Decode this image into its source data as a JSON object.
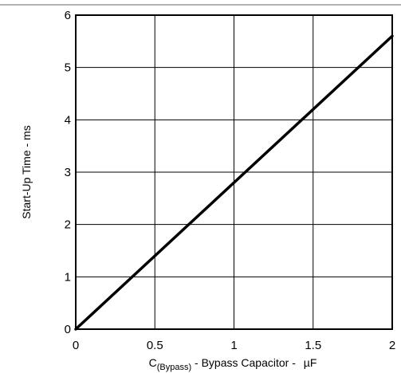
{
  "chart_data": {
    "type": "line",
    "title": "",
    "xlabel": {
      "main": "C",
      "subscript": "(Bypass)",
      "rest": " - Bypass Capacitor - ",
      "unit": "µF"
    },
    "ylabel": "Start-Up Time - ms",
    "xlim": [
      0,
      2
    ],
    "ylim": [
      0,
      6
    ],
    "x_ticks": [
      "0",
      "0.5",
      "1",
      "1.5",
      "2"
    ],
    "y_ticks": [
      "0",
      "1",
      "2",
      "3",
      "4",
      "5",
      "6"
    ],
    "grid": true,
    "series": [
      {
        "x": [
          0,
          2
        ],
        "y": [
          0,
          5.6
        ]
      }
    ],
    "colors": {
      "line": "#000000",
      "grid": "#000000",
      "background": "#ffffff"
    }
  }
}
